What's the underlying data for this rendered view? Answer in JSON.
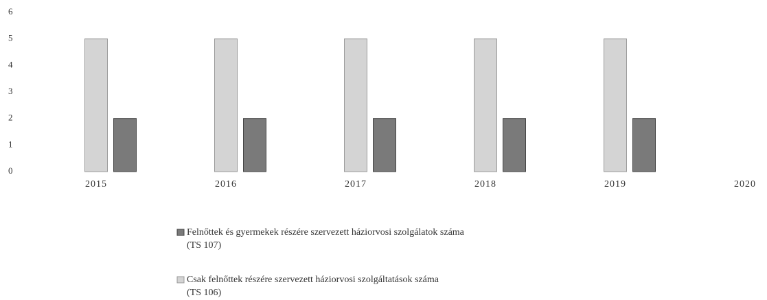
{
  "chart_data": {
    "type": "bar",
    "categories": [
      "2015",
      "2016",
      "2017",
      "2018",
      "2019",
      "2020"
    ],
    "series": [
      {
        "name": "Csak felnőttek részére szervezett háziorvosi szolgáltatások száma\n(TS 106)",
        "color": "#d4d4d4",
        "values": [
          5,
          5,
          5,
          5,
          5,
          null
        ]
      },
      {
        "name": "Felnőttek és gyermekek részére szervezett háziorvosi szolgálatok száma\n(TS 107)",
        "color": "#7a7a7a",
        "values": [
          2,
          2,
          2,
          2,
          2,
          null
        ]
      }
    ],
    "ylim": [
      0,
      6
    ],
    "yticks": [
      0,
      1,
      2,
      3,
      4,
      5,
      6
    ],
    "grid": false
  }
}
